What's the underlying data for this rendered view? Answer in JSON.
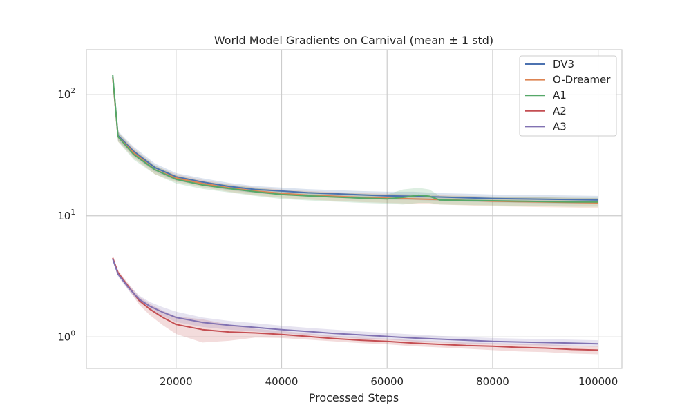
{
  "chart_data": {
    "type": "line",
    "title": "World Model Gradients on Carnival (mean ± 1 std)",
    "xlabel": "Processed Steps",
    "ylabel": "",
    "y_scale": "log",
    "xlim": [
      3000,
      104500
    ],
    "ylim": [
      0.55,
      235
    ],
    "grid": true,
    "legend_position": "top-right",
    "x_ticks": [
      20000,
      40000,
      60000,
      80000,
      100000
    ],
    "x_tick_labels": [
      "20000",
      "40000",
      "60000",
      "80000",
      "100000"
    ],
    "y_ticks": [
      {
        "value": 100,
        "base": "10",
        "exp": "2"
      },
      {
        "value": 10,
        "base": "10",
        "exp": "1"
      },
      {
        "value": 1,
        "base": "10",
        "exp": "0"
      }
    ],
    "series": [
      {
        "name": "DV3",
        "color": "#4c72b0",
        "x": [
          8000,
          9000,
          12000,
          16000,
          20000,
          25000,
          30000,
          35000,
          40000,
          45000,
          50000,
          55000,
          60000,
          65000,
          70000,
          75000,
          80000,
          85000,
          90000,
          95000,
          100000
        ],
        "y": [
          140,
          46,
          34,
          25,
          21,
          19,
          17.5,
          16.5,
          16,
          15.5,
          15.2,
          14.9,
          14.6,
          14.5,
          14.3,
          14.1,
          13.9,
          13.8,
          13.7,
          13.6,
          13.5
        ],
        "std_lo": [
          125,
          42,
          31,
          23,
          19.5,
          17.7,
          16.3,
          15.4,
          14.9,
          14.4,
          14.1,
          13.8,
          13.6,
          13.5,
          13.3,
          13.1,
          12.9,
          12.8,
          12.7,
          12.6,
          12.5
        ],
        "std_hi": [
          155,
          50,
          37,
          27,
          22.5,
          20.4,
          18.7,
          17.6,
          17.1,
          16.6,
          16.3,
          16.0,
          15.8,
          15.8,
          15.4,
          15.2,
          15.0,
          14.9,
          14.8,
          14.7,
          14.6
        ]
      },
      {
        "name": "O-Dreamer",
        "color": "#dd8452",
        "x": [
          8000,
          9000,
          12000,
          16000,
          20000,
          25000,
          30000,
          35000,
          40000,
          45000,
          50000,
          55000,
          60000,
          65000,
          70000,
          75000,
          80000,
          85000,
          90000,
          95000,
          100000
        ],
        "y": [
          138,
          45,
          33,
          24,
          20.5,
          18.5,
          17,
          16,
          15.3,
          14.8,
          14.5,
          14.2,
          14,
          13.8,
          13.6,
          13.4,
          13.2,
          13.1,
          13,
          12.9,
          12.8
        ],
        "std_lo": [
          123,
          41,
          30,
          22,
          19,
          17.2,
          15.8,
          14.8,
          14.1,
          13.6,
          13.3,
          13.0,
          12.8,
          12.6,
          12.4,
          12.2,
          12.0,
          11.9,
          11.8,
          11.7,
          11.6
        ],
        "std_hi": [
          153,
          49,
          36,
          26,
          22,
          19.8,
          18.2,
          17.2,
          16.5,
          16.0,
          15.7,
          15.4,
          15.2,
          15.0,
          14.8,
          14.6,
          14.4,
          14.3,
          14.2,
          14.1,
          14.0
        ]
      },
      {
        "name": "A1",
        "color": "#55a868",
        "x": [
          8000,
          9000,
          12000,
          16000,
          20000,
          25000,
          30000,
          35000,
          40000,
          45000,
          50000,
          55000,
          60000,
          63000,
          66000,
          68000,
          70000,
          75000,
          80000,
          85000,
          90000,
          95000,
          100000
        ],
        "y": [
          145,
          45,
          32,
          24,
          20,
          18,
          16.8,
          15.8,
          15,
          14.6,
          14.3,
          14,
          13.8,
          14.2,
          14.8,
          14.5,
          13.5,
          13.4,
          13.3,
          13.2,
          13.1,
          13.0,
          13.0
        ],
        "std_lo": [
          130,
          41,
          29,
          22,
          18.5,
          16.7,
          15.6,
          14.6,
          13.8,
          13.4,
          13.1,
          12.8,
          12.6,
          12.4,
          12.8,
          12.8,
          12.4,
          12.3,
          12.2,
          12.1,
          12.0,
          11.9,
          11.9
        ],
        "std_hi": [
          160,
          49,
          35,
          26,
          21.5,
          19.3,
          18.0,
          17.0,
          16.2,
          15.8,
          15.5,
          15.2,
          15.0,
          16.5,
          17.0,
          16.5,
          14.6,
          14.5,
          14.4,
          14.3,
          14.2,
          14.1,
          14.1
        ]
      },
      {
        "name": "A2",
        "color": "#c44e52",
        "x": [
          8000,
          9000,
          11000,
          13000,
          15000,
          17500,
          20000,
          25000,
          30000,
          35000,
          40000,
          45000,
          50000,
          55000,
          60000,
          65000,
          70000,
          75000,
          80000,
          85000,
          90000,
          95000,
          100000
        ],
        "y": [
          4.5,
          3.4,
          2.6,
          2.0,
          1.7,
          1.45,
          1.27,
          1.15,
          1.1,
          1.08,
          1.05,
          1.01,
          0.97,
          0.94,
          0.92,
          0.89,
          0.87,
          0.85,
          0.84,
          0.82,
          0.81,
          0.79,
          0.78
        ],
        "std_lo": [
          4.3,
          3.25,
          2.45,
          1.85,
          1.52,
          1.25,
          1.06,
          0.9,
          0.93,
          0.99,
          0.98,
          0.95,
          0.92,
          0.89,
          0.87,
          0.84,
          0.82,
          0.8,
          0.78,
          0.76,
          0.75,
          0.73,
          0.72
        ],
        "std_hi": [
          4.7,
          3.55,
          2.75,
          2.15,
          1.88,
          1.65,
          1.48,
          1.4,
          1.27,
          1.17,
          1.12,
          1.07,
          1.02,
          0.99,
          0.97,
          0.94,
          0.92,
          0.9,
          0.89,
          0.88,
          0.87,
          0.85,
          0.84
        ]
      },
      {
        "name": "A3",
        "color": "#8172b2",
        "x": [
          8000,
          9000,
          11000,
          13000,
          15000,
          17500,
          20000,
          25000,
          30000,
          35000,
          40000,
          45000,
          50000,
          55000,
          60000,
          65000,
          70000,
          75000,
          80000,
          85000,
          90000,
          95000,
          100000
        ],
        "y": [
          4.4,
          3.3,
          2.55,
          2.05,
          1.8,
          1.6,
          1.45,
          1.32,
          1.25,
          1.2,
          1.15,
          1.11,
          1.07,
          1.04,
          1.01,
          0.98,
          0.96,
          0.94,
          0.92,
          0.91,
          0.9,
          0.89,
          0.88
        ],
        "std_lo": [
          4.25,
          3.15,
          2.42,
          1.94,
          1.68,
          1.48,
          1.33,
          1.21,
          1.15,
          1.11,
          1.07,
          1.04,
          1.0,
          0.97,
          0.95,
          0.92,
          0.9,
          0.88,
          0.87,
          0.86,
          0.85,
          0.84,
          0.83
        ],
        "std_hi": [
          4.55,
          3.45,
          2.7,
          2.2,
          1.95,
          1.76,
          1.62,
          1.45,
          1.36,
          1.3,
          1.24,
          1.19,
          1.15,
          1.11,
          1.08,
          1.05,
          1.02,
          1.0,
          0.98,
          0.97,
          0.96,
          0.95,
          0.94
        ]
      }
    ]
  }
}
